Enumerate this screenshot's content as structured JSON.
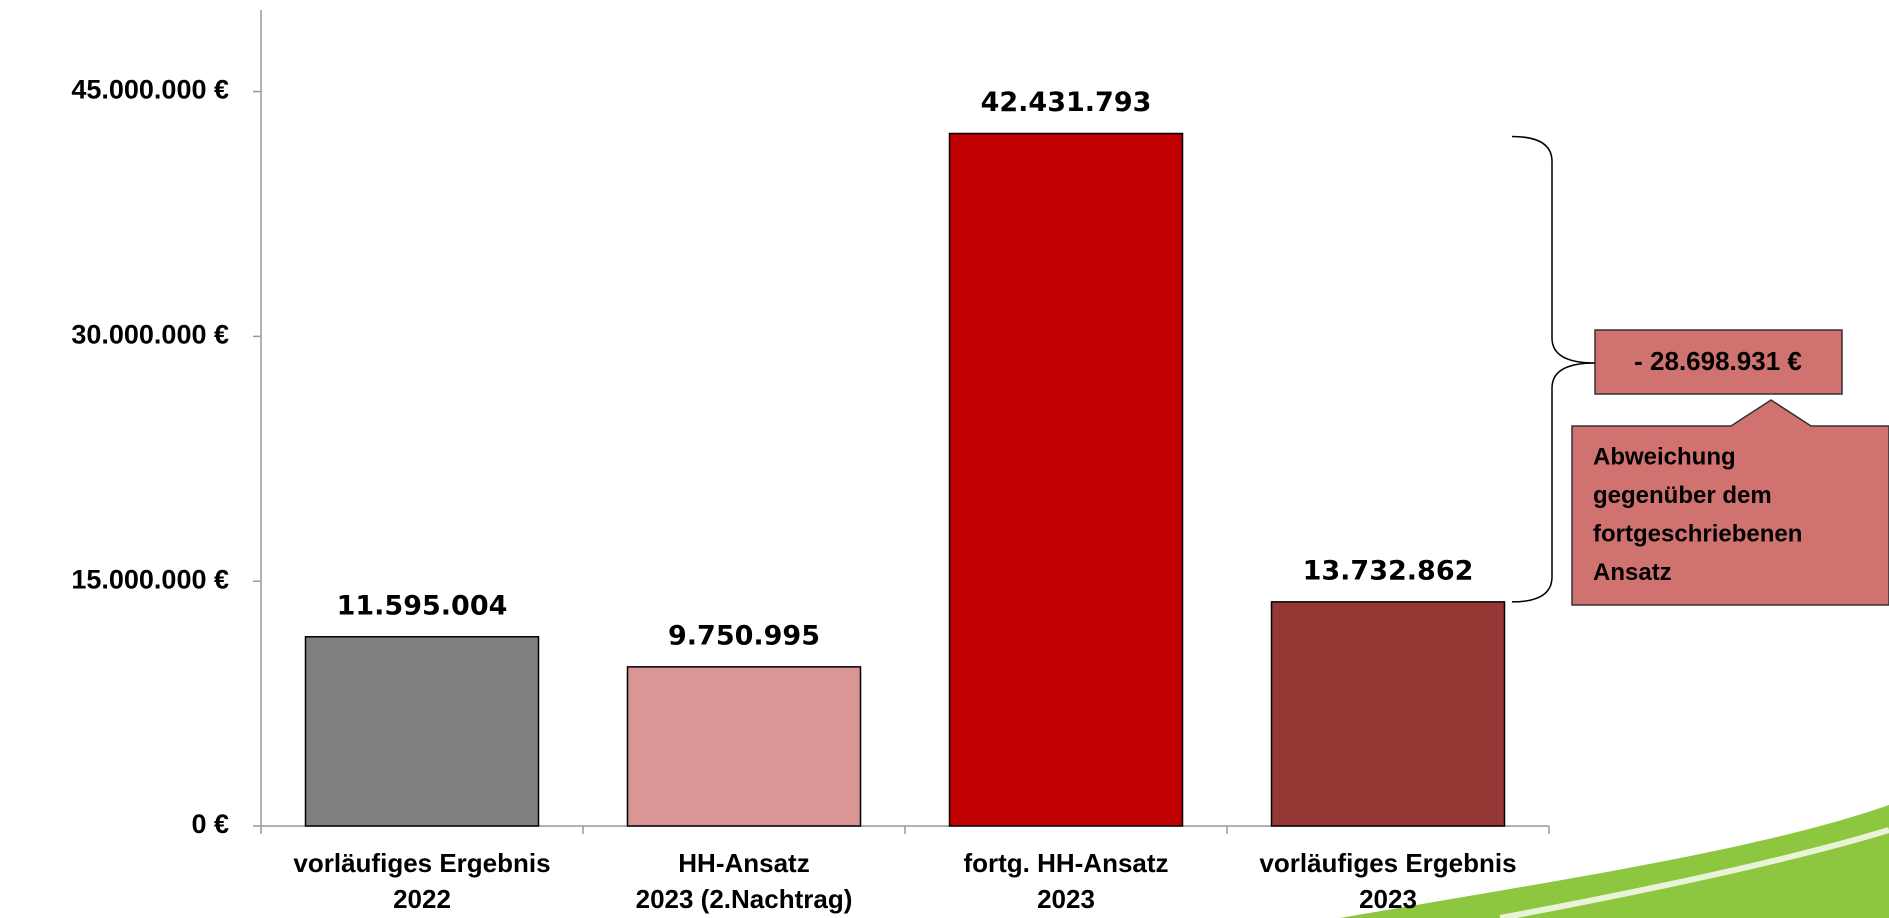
{
  "chart_data": {
    "type": "bar",
    "categories": [
      [
        "vorläufiges Ergebnis",
        "2022"
      ],
      [
        "HH-Ansatz",
        "2023 (2.Nachtrag)"
      ],
      [
        "fortg. HH-Ansatz",
        "2023"
      ],
      [
        "vorläufiges Ergebnis",
        "2023"
      ]
    ],
    "values": [
      11595004,
      9750995,
      42431793,
      13732862
    ],
    "value_labels": [
      "11.595.004",
      "9.750.995",
      "42.431.793",
      "13.732.862"
    ],
    "colors": [
      "#808080",
      "#d99694",
      "#c00000",
      "#953735"
    ],
    "ylim": [
      0,
      50000000
    ],
    "yticks": [
      {
        "value": 0,
        "label": "0 €"
      },
      {
        "value": 15000000,
        "label": "15.000.000 €"
      },
      {
        "value": 30000000,
        "label": "30.000.000 €"
      },
      {
        "value": 45000000,
        "label": "45.000.000 €"
      }
    ],
    "annotation": "- 28.698.931 €",
    "callout": [
      "Abweichung",
      "gegenüber dem",
      "fortgeschriebenen",
      "Ansatz"
    ]
  }
}
